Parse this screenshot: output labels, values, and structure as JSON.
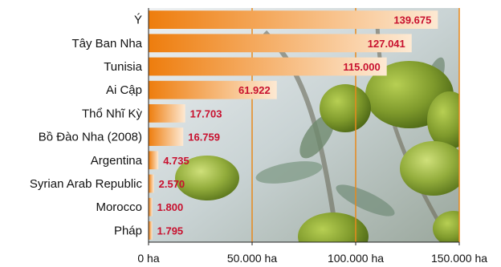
{
  "chart_data": {
    "type": "bar",
    "orientation": "horizontal",
    "categories": [
      "Ý",
      "Tây Ban Nha",
      "Tunisia",
      "Ai Cập",
      "Thổ Nhĩ Kỳ",
      "Bồ Đào Nha (2008)",
      "Argentina",
      "Syrian Arab Republic",
      "Morocco",
      "Pháp"
    ],
    "values": [
      139675,
      127041,
      115000,
      61922,
      17703,
      16759,
      4735,
      2570,
      1800,
      1795
    ],
    "value_labels": [
      "139.675",
      "127.041",
      "115.000",
      "61.922",
      "17.703",
      "16.759",
      "4.735",
      "2.570",
      "1.800",
      "1.795"
    ],
    "xlim": [
      0,
      150000
    ],
    "xticks": [
      0,
      50000,
      100000,
      150000
    ],
    "xtick_labels": [
      "0 ha",
      "50.000 ha",
      "100.000 ha",
      "150.000 ha"
    ],
    "grid": "vertical",
    "background": "olive-branch photo",
    "colors": {
      "bar_dark": "#ee7d0d",
      "bar_light": "#fde9d3",
      "gridline": "#e8891c",
      "value_text": "#c8102e"
    }
  }
}
